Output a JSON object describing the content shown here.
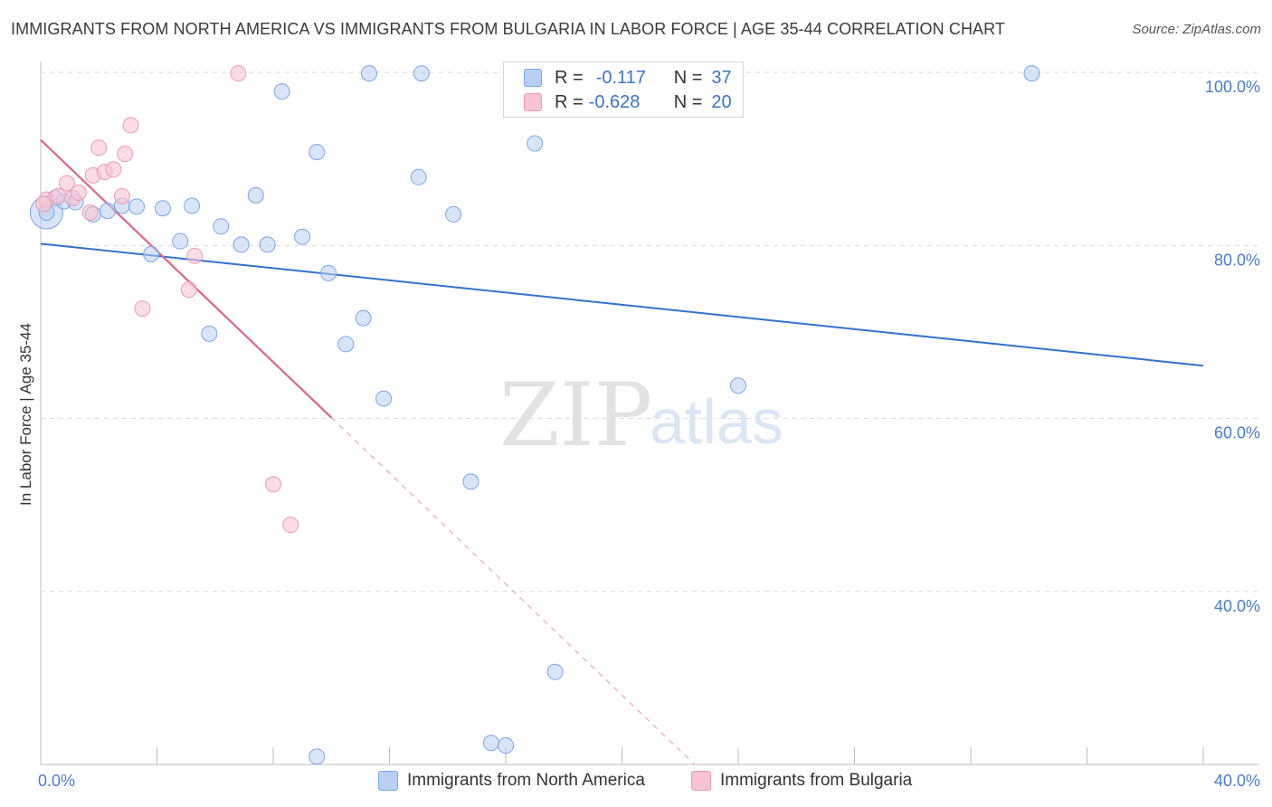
{
  "header": {
    "title": "IMMIGRANTS FROM NORTH AMERICA VS IMMIGRANTS FROM BULGARIA IN LABOR FORCE | AGE 35-44 CORRELATION CHART",
    "source": "Source: ZipAtlas.com"
  },
  "legend": {
    "r_label": "R =",
    "n_label": "N =",
    "series": [
      {
        "r": "-0.117",
        "n": "37"
      },
      {
        "r": "-0.628",
        "n": "20"
      }
    ]
  },
  "watermark": {
    "zip": "ZIP",
    "atlas": "atlas"
  },
  "colors": {
    "blue_fill": "#b8d0f2",
    "blue_stroke": "#7aa6e6",
    "blue_line": "#3272cc",
    "pink_fill": "#f8c3d3",
    "pink_stroke": "#ee9ab4",
    "pink_line": "#e0648c",
    "tick_text": "#4a7bd0"
  },
  "chart_data": {
    "type": "scatter",
    "xlabel": "",
    "ylabel": "In Labor Force | Age 35-44",
    "xlim": [
      0,
      40
    ],
    "ylim": [
      20,
      102
    ],
    "x_tick_labels": [
      {
        "value": 0,
        "label": "0.0%"
      },
      {
        "value": 40,
        "label": "40.0%"
      }
    ],
    "y_tick_labels": [
      {
        "value": 100,
        "label": "100.0%"
      },
      {
        "value": 80,
        "label": "80.0%"
      },
      {
        "value": 60,
        "label": "60.0%"
      },
      {
        "value": 40,
        "label": "40.0%"
      }
    ],
    "grid": true,
    "legend_position": "top-center",
    "series": [
      {
        "name": "Immigrants from North America",
        "color": "#b8d0f2",
        "points": [
          [
            0.2,
            83.8
          ],
          [
            0.8,
            85.1
          ],
          [
            1.2,
            85.0
          ],
          [
            1.8,
            83.6
          ],
          [
            2.3,
            84.0
          ],
          [
            2.8,
            84.6
          ],
          [
            3.3,
            84.5
          ],
          [
            3.8,
            79.0
          ],
          [
            4.2,
            84.3
          ],
          [
            4.8,
            80.5
          ],
          [
            5.2,
            84.6
          ],
          [
            6.2,
            82.2
          ],
          [
            6.9,
            80.1
          ],
          [
            7.4,
            85.8
          ],
          [
            7.8,
            80.1
          ],
          [
            8.3,
            97.8
          ],
          [
            9.0,
            81.0
          ],
          [
            9.5,
            90.8
          ],
          [
            9.9,
            76.8
          ],
          [
            10.5,
            68.6
          ],
          [
            11.1,
            71.6
          ],
          [
            11.3,
            99.9
          ],
          [
            11.8,
            62.3
          ],
          [
            13.1,
            99.9
          ],
          [
            13.0,
            87.9
          ],
          [
            14.2,
            83.6
          ],
          [
            14.8,
            52.7
          ],
          [
            15.5,
            22.5
          ],
          [
            16.0,
            22.2
          ],
          [
            17.0,
            91.8
          ],
          [
            17.7,
            30.7
          ],
          [
            18.4,
            99.7
          ],
          [
            24.0,
            63.8
          ],
          [
            34.1,
            99.9
          ],
          [
            9.5,
            20.9
          ],
          [
            5.8,
            69.8
          ],
          [
            0.5,
            85.5
          ]
        ]
      },
      {
        "name": "Immigrants from Bulgaria",
        "color": "#f8c3d3",
        "points": [
          [
            0.2,
            85.3
          ],
          [
            0.6,
            85.7
          ],
          [
            0.9,
            87.2
          ],
          [
            1.1,
            85.5
          ],
          [
            1.3,
            86.1
          ],
          [
            1.7,
            83.8
          ],
          [
            1.8,
            88.1
          ],
          [
            2.0,
            91.3
          ],
          [
            2.2,
            88.5
          ],
          [
            2.5,
            88.8
          ],
          [
            2.8,
            85.7
          ],
          [
            2.9,
            90.6
          ],
          [
            3.1,
            93.9
          ],
          [
            3.5,
            72.7
          ],
          [
            5.1,
            74.9
          ],
          [
            5.3,
            78.8
          ],
          [
            6.8,
            99.9
          ],
          [
            8.0,
            52.4
          ],
          [
            8.6,
            47.7
          ],
          [
            0.1,
            84.8
          ]
        ]
      }
    ],
    "trend_lines": [
      {
        "series": "Immigrants from North America",
        "x": [
          0,
          40
        ],
        "y": [
          80.2,
          66.1
        ]
      },
      {
        "series": "Immigrants from Bulgaria",
        "x": [
          0,
          10
        ],
        "y": [
          92.2,
          60.1
        ],
        "extension_x": [
          10,
          22.5
        ],
        "extension_y": [
          60.1,
          20.0
        ]
      }
    ]
  }
}
